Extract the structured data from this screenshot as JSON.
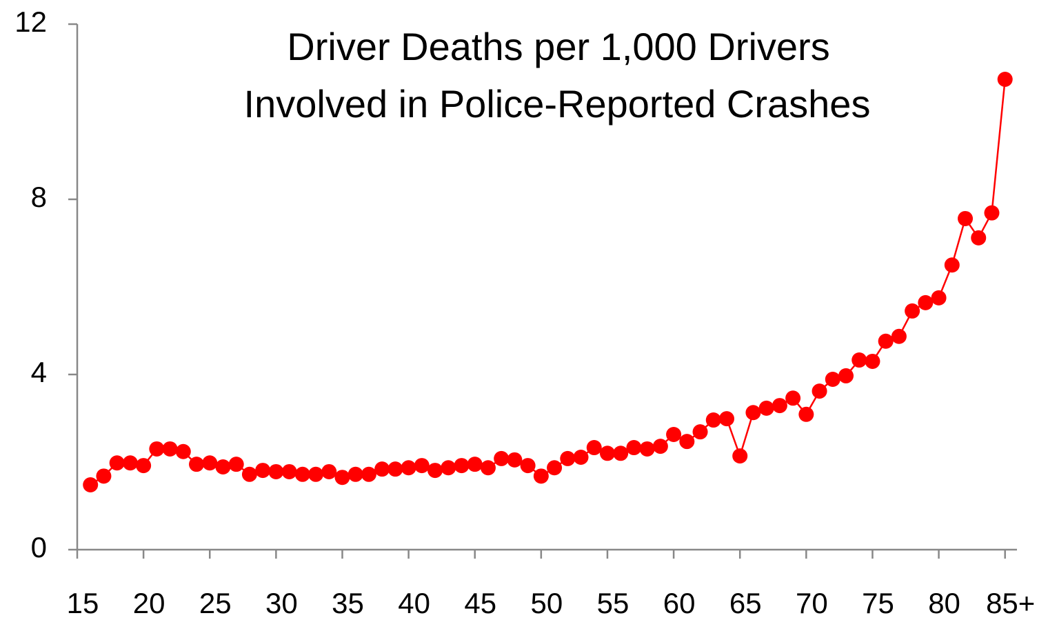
{
  "chart_data": {
    "type": "line",
    "title": [
      "Driver Deaths per 1,000 Drivers",
      "Involved in Police-Reported Crashes"
    ],
    "x": [
      16,
      17,
      18,
      19,
      20,
      21,
      22,
      23,
      24,
      25,
      26,
      27,
      28,
      29,
      30,
      31,
      32,
      33,
      34,
      35,
      36,
      37,
      38,
      39,
      40,
      41,
      42,
      43,
      44,
      45,
      46,
      47,
      48,
      49,
      50,
      51,
      52,
      53,
      54,
      55,
      56,
      57,
      58,
      59,
      60,
      61,
      62,
      63,
      64,
      65,
      66,
      67,
      68,
      69,
      70,
      71,
      72,
      73,
      74,
      75,
      76,
      77,
      78,
      79,
      80,
      81,
      82,
      83,
      84,
      85
    ],
    "values": [
      1.48,
      1.68,
      1.98,
      1.98,
      1.92,
      2.3,
      2.3,
      2.24,
      1.95,
      1.98,
      1.89,
      1.95,
      1.72,
      1.81,
      1.78,
      1.78,
      1.72,
      1.72,
      1.78,
      1.65,
      1.72,
      1.72,
      1.84,
      1.84,
      1.87,
      1.92,
      1.81,
      1.87,
      1.92,
      1.95,
      1.87,
      2.08,
      2.05,
      1.92,
      1.68,
      1.87,
      2.08,
      2.11,
      2.33,
      2.2,
      2.2,
      2.33,
      2.3,
      2.36,
      2.63,
      2.47,
      2.69,
      2.96,
      2.99,
      2.14,
      3.13,
      3.23,
      3.29,
      3.46,
      3.09,
      3.62,
      3.89,
      3.97,
      4.33,
      4.3,
      4.76,
      4.87,
      5.45,
      5.64,
      5.75,
      6.5,
      7.56,
      7.12,
      7.69,
      10.74
    ],
    "color": "#ff0000",
    "xlim": [
      15,
      85.9
    ],
    "xticks": [
      15,
      20,
      25,
      30,
      35,
      40,
      45,
      50,
      55,
      60,
      65,
      70,
      75,
      80,
      {
        "value": 85,
        "label": "85+"
      }
    ],
    "ylim": [
      0,
      12
    ],
    "yticks": [
      0,
      4,
      8,
      12
    ],
    "grid": false
  }
}
